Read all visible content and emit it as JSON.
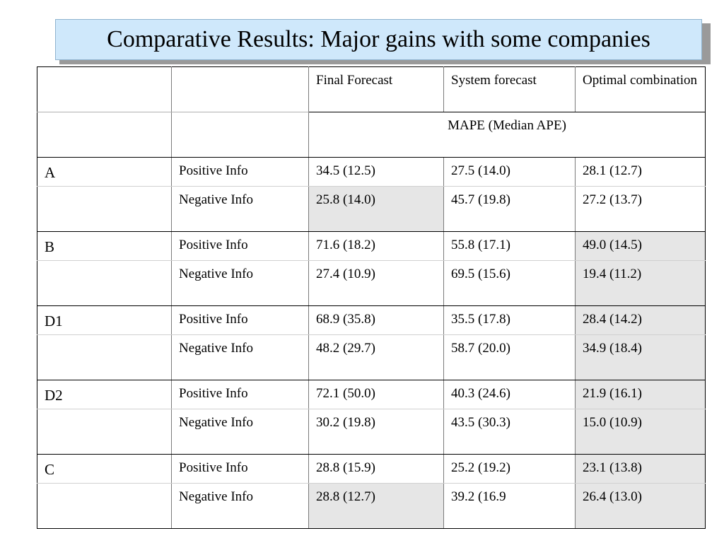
{
  "title": "Comparative Results: Major gains with some companies",
  "columns": [
    "Final Forecast",
    "System forecast",
    "Optimal combination"
  ],
  "metric_label": "MAPE (Median APE)",
  "companies": [
    {
      "name": "A",
      "rows": [
        {
          "info": "Positive Info",
          "values": [
            "34.5 (12.5)",
            "27.5 (14.0)",
            "28.1 (12.7)"
          ],
          "shaded": [
            false,
            false,
            false
          ]
        },
        {
          "info": "Negative Info",
          "values": [
            "25.8 (14.0)",
            "45.7 (19.8)",
            "27.2 (13.7)"
          ],
          "shaded": [
            true,
            false,
            false
          ]
        }
      ]
    },
    {
      "name": "B",
      "rows": [
        {
          "info": "Positive Info",
          "values": [
            "71.6 (18.2)",
            "55.8 (17.1)",
            "49.0 (14.5)"
          ],
          "shaded": [
            false,
            false,
            true
          ]
        },
        {
          "info": "Negative Info",
          "values": [
            "27.4 (10.9)",
            "69.5 (15.6)",
            "19.4 (11.2)"
          ],
          "shaded": [
            false,
            false,
            true
          ]
        }
      ]
    },
    {
      "name": "D1",
      "rows": [
        {
          "info": "Positive Info",
          "values": [
            "68.9 (35.8)",
            "35.5 (17.8)",
            "28.4 (14.2)"
          ],
          "shaded": [
            false,
            false,
            true
          ]
        },
        {
          "info": "Negative Info",
          "values": [
            "48.2 (29.7)",
            "58.7 (20.0)",
            "34.9 (18.4)"
          ],
          "shaded": [
            false,
            false,
            true
          ]
        }
      ]
    },
    {
      "name": "D2",
      "rows": [
        {
          "info": "Positive Info",
          "values": [
            "72.1 (50.0)",
            "40.3 (24.6)",
            "21.9 (16.1)"
          ],
          "shaded": [
            false,
            false,
            true
          ]
        },
        {
          "info": "Negative Info",
          "values": [
            "30.2 (19.8)",
            "43.5 (30.3)",
            "15.0 (10.9)"
          ],
          "shaded": [
            false,
            false,
            true
          ]
        }
      ]
    },
    {
      "name": "C",
      "rows": [
        {
          "info": "Positive Info",
          "values": [
            "28.8 (15.9)",
            "25.2 (19.2)",
            "23.1 (13.8)"
          ],
          "shaded": [
            false,
            false,
            true
          ]
        },
        {
          "info": "Negative Info",
          "values": [
            "28.8 (12.7)",
            "39.2 (16.9",
            "26.4 (13.0)"
          ],
          "shaded": [
            true,
            false,
            true
          ]
        }
      ]
    }
  ],
  "colors": {
    "title_background": "#cfe8fb",
    "shade": "#e6e6e6"
  }
}
